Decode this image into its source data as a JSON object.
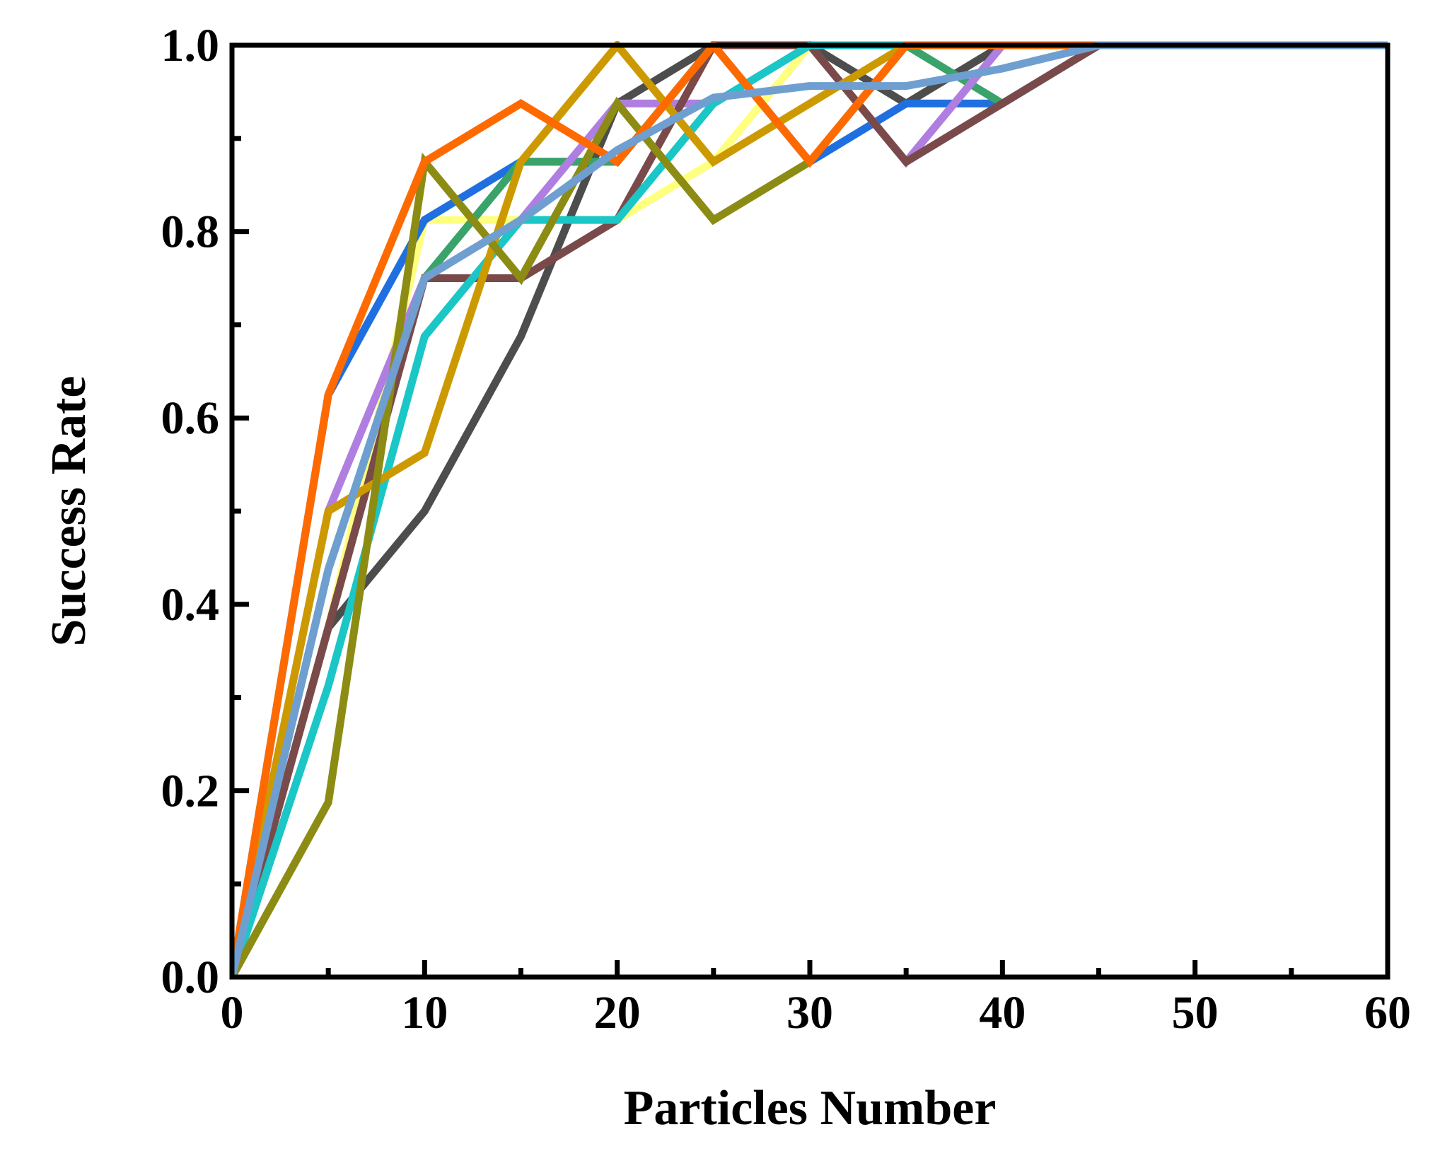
{
  "chart_data": {
    "type": "line",
    "title": "",
    "xlabel": "Particles Number",
    "ylabel": "Success Rate",
    "xlim": [
      0,
      60
    ],
    "ylim": [
      0,
      1.0
    ],
    "x_ticks": [
      0,
      10,
      20,
      30,
      40,
      50,
      60
    ],
    "x_tick_labels": [
      "0",
      "10",
      "20",
      "30",
      "40",
      "50",
      "60"
    ],
    "y_ticks": [
      0.0,
      0.2,
      0.4,
      0.6,
      0.8,
      1.0
    ],
    "y_tick_labels": [
      "0.0",
      "0.2",
      "0.4",
      "0.6",
      "0.8",
      "1.0"
    ],
    "x_minor_ticks": [
      5,
      15,
      25,
      35,
      45,
      55
    ],
    "y_minor_ticks": [
      0.1,
      0.3,
      0.5,
      0.7,
      0.9
    ],
    "grid": false,
    "legend": "none",
    "x": [
      0,
      5,
      10,
      15,
      20,
      25,
      30,
      35,
      40,
      45,
      50,
      55,
      60
    ],
    "series": [
      {
        "name": "series-yellow",
        "color": "#ffff80",
        "values": [
          0,
          0.375,
          0.8125,
          0.8125,
          0.8125,
          0.875,
          1.0,
          0.9375,
          1.0,
          1.0,
          1.0,
          1.0,
          1.0
        ]
      },
      {
        "name": "series-dark-gray",
        "color": "#4d4d4d",
        "values": [
          0,
          0.375,
          0.5,
          0.6875,
          0.9375,
          1.0,
          1.0,
          0.9375,
          1.0,
          1.0,
          1.0,
          1.0,
          1.0
        ]
      },
      {
        "name": "series-blue",
        "color": "#1f6fe0",
        "values": [
          0,
          0.625,
          0.8125,
          0.875,
          0.875,
          1.0,
          0.875,
          0.9375,
          0.9375,
          1.0,
          1.0,
          1.0,
          1.0
        ]
      },
      {
        "name": "series-green",
        "color": "#3aa36a",
        "values": [
          0,
          0.4375,
          0.75,
          0.875,
          0.875,
          1.0,
          1.0,
          1.0,
          0.9375,
          1.0,
          1.0,
          1.0,
          1.0
        ]
      },
      {
        "name": "series-purple",
        "color": "#b07ee0",
        "values": [
          0,
          0.5,
          0.75,
          0.8125,
          0.9375,
          0.9375,
          1.0,
          0.875,
          1.0,
          1.0,
          1.0,
          1.0,
          1.0
        ]
      },
      {
        "name": "series-brown",
        "color": "#7a4a4a",
        "values": [
          0,
          0.375,
          0.75,
          0.75,
          0.8125,
          1.0,
          1.0,
          0.875,
          0.9375,
          1.0,
          1.0,
          1.0,
          1.0
        ]
      },
      {
        "name": "series-cyan",
        "color": "#1bc6c6",
        "values": [
          0,
          0.3125,
          0.6875,
          0.8125,
          0.8125,
          0.9375,
          1.0,
          1.0,
          1.0,
          1.0,
          1.0,
          1.0,
          1.0
        ]
      },
      {
        "name": "series-gold",
        "color": "#cc9a00",
        "values": [
          0,
          0.5,
          0.5625,
          0.875,
          1.0,
          0.875,
          0.9375,
          1.0,
          1.0,
          1.0,
          1.0,
          1.0,
          1.0
        ]
      },
      {
        "name": "series-olive",
        "color": "#8c8c14",
        "values": [
          0,
          0.1875,
          0.875,
          0.75,
          0.9375,
          0.8125,
          0.875,
          1.0,
          1.0,
          1.0,
          1.0,
          1.0,
          1.0
        ]
      },
      {
        "name": "series-orange",
        "color": "#ff6a00",
        "values": [
          0,
          0.625,
          0.875,
          0.9375,
          0.875,
          1.0,
          0.875,
          1.0,
          1.0,
          1.0,
          1.0,
          1.0,
          1.0
        ]
      },
      {
        "name": "series-light-blue",
        "color": "#6f9fd0",
        "values": [
          0,
          0.4375,
          0.75,
          0.8125,
          0.8875,
          0.9438,
          0.9563,
          0.9563,
          0.975,
          1.0,
          1.0,
          1.0,
          1.0
        ]
      }
    ]
  }
}
